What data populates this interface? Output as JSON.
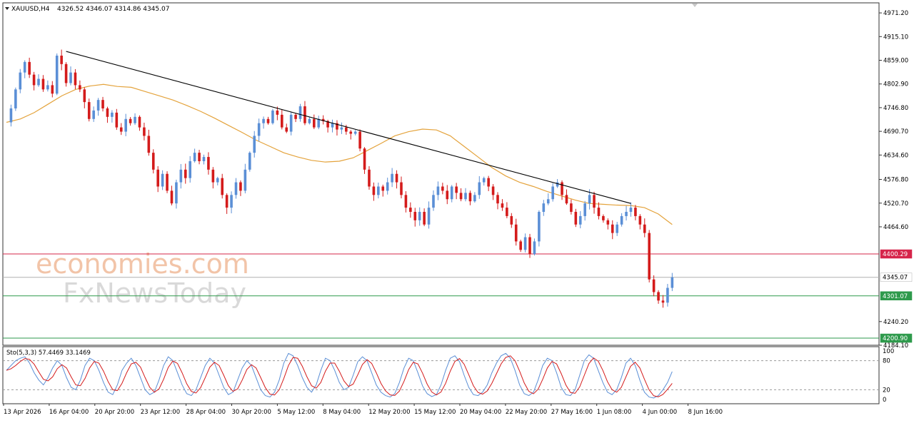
{
  "header": {
    "symbol_label": "XAUUSD,H4",
    "ohlc_label": "4326.52 4346.07 4314.86 4345.07"
  },
  "watermark": {
    "line1": "economies.com",
    "line2": "FxNewsToday"
  },
  "indicator": {
    "label": "Sto(5,3,3) 57.4469 33.1469"
  },
  "colors": {
    "bull": "#5b8fd6",
    "bear": "#d41b1b",
    "ma": "#e4a33c",
    "trendline": "#000000",
    "resistance": "#d6244a",
    "support": "#2e9a4c",
    "current_price": "#b0b0b0",
    "stoch_main": "#5b8fd6",
    "stoch_signal": "#d41b1b"
  },
  "chart_data": {
    "type": "candlestick",
    "symbol": "XAUUSD",
    "timeframe": "H4",
    "ylim": [
      4184.1,
      4995
    ],
    "y_ticks": [
      4971.2,
      4915.1,
      4859.0,
      4802.9,
      4746.8,
      4690.7,
      4634.6,
      4576.8,
      4520.7,
      4464.6,
      4240.2,
      4184.1
    ],
    "x_tick_labels": [
      "13 Apr 2026",
      "16 Apr 04:00",
      "20 Apr 20:00",
      "23 Apr 12:00",
      "28 Apr 04:00",
      "30 Apr 20:00",
      "5 May 12:00",
      "8 May 04:00",
      "12 May 20:00",
      "15 May 12:00",
      "20 May 04:00",
      "22 May 20:00",
      "27 May 16:00",
      "1 Jun 08:00",
      "4 Jun 00:00",
      "8 Jun 16:00"
    ],
    "close_path": [
      4712,
      4745,
      4790,
      4830,
      4855,
      4825,
      4800,
      4815,
      4790,
      4800,
      4780,
      4870,
      4850,
      4805,
      4830,
      4800,
      4790,
      4760,
      4720,
      4740,
      4765,
      4745,
      4725,
      4735,
      4700,
      4690,
      4720,
      4710,
      4725,
      4700,
      4680,
      4640,
      4600,
      4560,
      4590,
      4550,
      4520,
      4570,
      4600,
      4580,
      4620,
      4640,
      4620,
      4630,
      4600,
      4570,
      4580,
      4540,
      4510,
      4540,
      4570,
      4550,
      4600,
      4640,
      4680,
      4710,
      4720,
      4710,
      4740,
      4730,
      4700,
      4690,
      4730,
      4720,
      4750,
      4710,
      4720,
      4700,
      4720,
      4715,
      4700,
      4710,
      4695,
      4700,
      4690,
      4685,
      4690,
      4650,
      4600,
      4560,
      4540,
      4560,
      4550,
      4570,
      4590,
      4570,
      4540,
      4510,
      4500,
      4480,
      4500,
      4470,
      4510,
      4540,
      4560,
      4550,
      4530,
      4560,
      4545,
      4530,
      4545,
      4525,
      4540,
      4570,
      4580,
      4560,
      4540,
      4520,
      4510,
      4490,
      4470,
      4430,
      4410,
      4440,
      4400,
      4430,
      4500,
      4520,
      4530,
      4560,
      4570,
      4540,
      4520,
      4500,
      4470,
      4490,
      4520,
      4540,
      4510,
      4490,
      4480,
      4470,
      4450,
      4470,
      4490,
      4500,
      4510,
      4490,
      4470,
      4450,
      4340,
      4310,
      4290,
      4285,
      4320,
      4345.07
    ],
    "ma_path": [
      4712,
      4720,
      4735,
      4755,
      4775,
      4790,
      4798,
      4802,
      4797,
      4795,
      4785,
      4775,
      4765,
      4752,
      4738,
      4722,
      4705,
      4688,
      4670,
      4655,
      4640,
      4630,
      4622,
      4618,
      4620,
      4628,
      4645,
      4662,
      4680,
      4690,
      4696,
      4694,
      4680,
      4655,
      4630,
      4605,
      4585,
      4570,
      4560,
      4548,
      4538,
      4528,
      4520,
      4518,
      4516,
      4515,
      4510,
      4495,
      4470
    ],
    "trendline": {
      "start": {
        "index": 13,
        "price": 4880
      },
      "end": {
        "index": 136,
        "price": 4520
      }
    },
    "horizontal_levels": [
      {
        "label": "4400.29",
        "value": 4400.29,
        "kind": "resistance"
      },
      {
        "label": "4345.07",
        "value": 4345.07,
        "kind": "current"
      },
      {
        "label": "4301.07",
        "value": 4301.07,
        "kind": "support"
      },
      {
        "label": "4200.90",
        "value": 4200.9,
        "kind": "support"
      }
    ],
    "stochastic": {
      "name": "Sto(5,3,3)",
      "main_last": 57.4469,
      "signal_last": 33.1469,
      "y_ticks": [
        100,
        80,
        20,
        0
      ],
      "levels": [
        80,
        20
      ],
      "main": [
        60,
        70,
        80,
        85,
        88,
        75,
        55,
        40,
        30,
        45,
        65,
        80,
        70,
        45,
        25,
        20,
        40,
        70,
        85,
        80,
        60,
        35,
        15,
        10,
        30,
        60,
        75,
        85,
        70,
        45,
        20,
        10,
        15,
        40,
        70,
        88,
        80,
        55,
        30,
        12,
        8,
        20,
        45,
        70,
        85,
        75,
        50,
        25,
        10,
        15,
        40,
        65,
        80,
        70,
        45,
        20,
        8,
        5,
        15,
        40,
        75,
        95,
        90,
        70,
        45,
        25,
        15,
        30,
        60,
        85,
        80,
        60,
        35,
        20,
        25,
        50,
        78,
        88,
        80,
        55,
        30,
        15,
        8,
        5,
        12,
        35,
        65,
        85,
        80,
        55,
        28,
        12,
        6,
        10,
        30,
        60,
        85,
        90,
        78,
        50,
        25,
        10,
        8,
        15,
        30,
        55,
        75,
        90,
        95,
        85,
        60,
        30,
        12,
        8,
        15,
        40,
        70,
        85,
        80,
        55,
        25,
        10,
        8,
        20,
        50,
        80,
        92,
        85,
        60,
        35,
        15,
        10,
        20,
        45,
        75,
        85,
        70,
        40,
        15,
        5,
        3,
        8,
        20,
        35,
        57.4469
      ]
    }
  }
}
